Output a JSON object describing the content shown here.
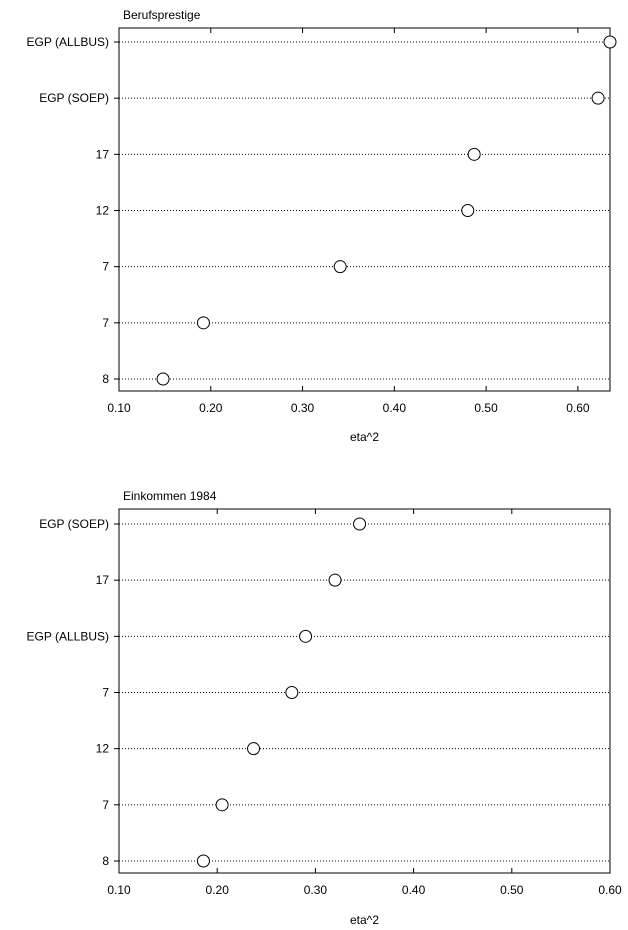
{
  "chart_data": [
    {
      "type": "scatter",
      "title": "Berufsprestige",
      "xlabel": "eta^2",
      "ylabel": "",
      "xlim": [
        0.1,
        0.635
      ],
      "xticks": [
        "0.10",
        "0.20",
        "0.30",
        "0.40",
        "0.50",
        "0.60"
      ],
      "xtick_values": [
        0.1,
        0.2,
        0.3,
        0.4,
        0.5,
        0.6
      ],
      "grid": "horizontal dotted",
      "marker": "open circle",
      "categories": [
        "EGP (ALLBUS)",
        "EGP (SOEP)",
        "17",
        "12",
        "7",
        "7",
        "8"
      ],
      "values": [
        0.635,
        0.622,
        0.487,
        0.48,
        0.341,
        0.192,
        0.148
      ]
    },
    {
      "type": "scatter",
      "title": "Einkommen 1984",
      "xlabel": "eta^2",
      "ylabel": "",
      "xlim": [
        0.1,
        0.6
      ],
      "xticks": [
        "0.10",
        "0.20",
        "0.30",
        "0.40",
        "0.50",
        "0.60"
      ],
      "xtick_values": [
        0.1,
        0.2,
        0.3,
        0.4,
        0.5,
        0.6
      ],
      "grid": "horizontal dotted",
      "marker": "open circle",
      "categories": [
        "EGP (SOEP)",
        "17",
        "EGP (ALLBUS)",
        "7",
        "12",
        "7",
        "8"
      ],
      "values": [
        0.345,
        0.32,
        0.29,
        0.276,
        0.237,
        0.205,
        0.186
      ]
    }
  ]
}
